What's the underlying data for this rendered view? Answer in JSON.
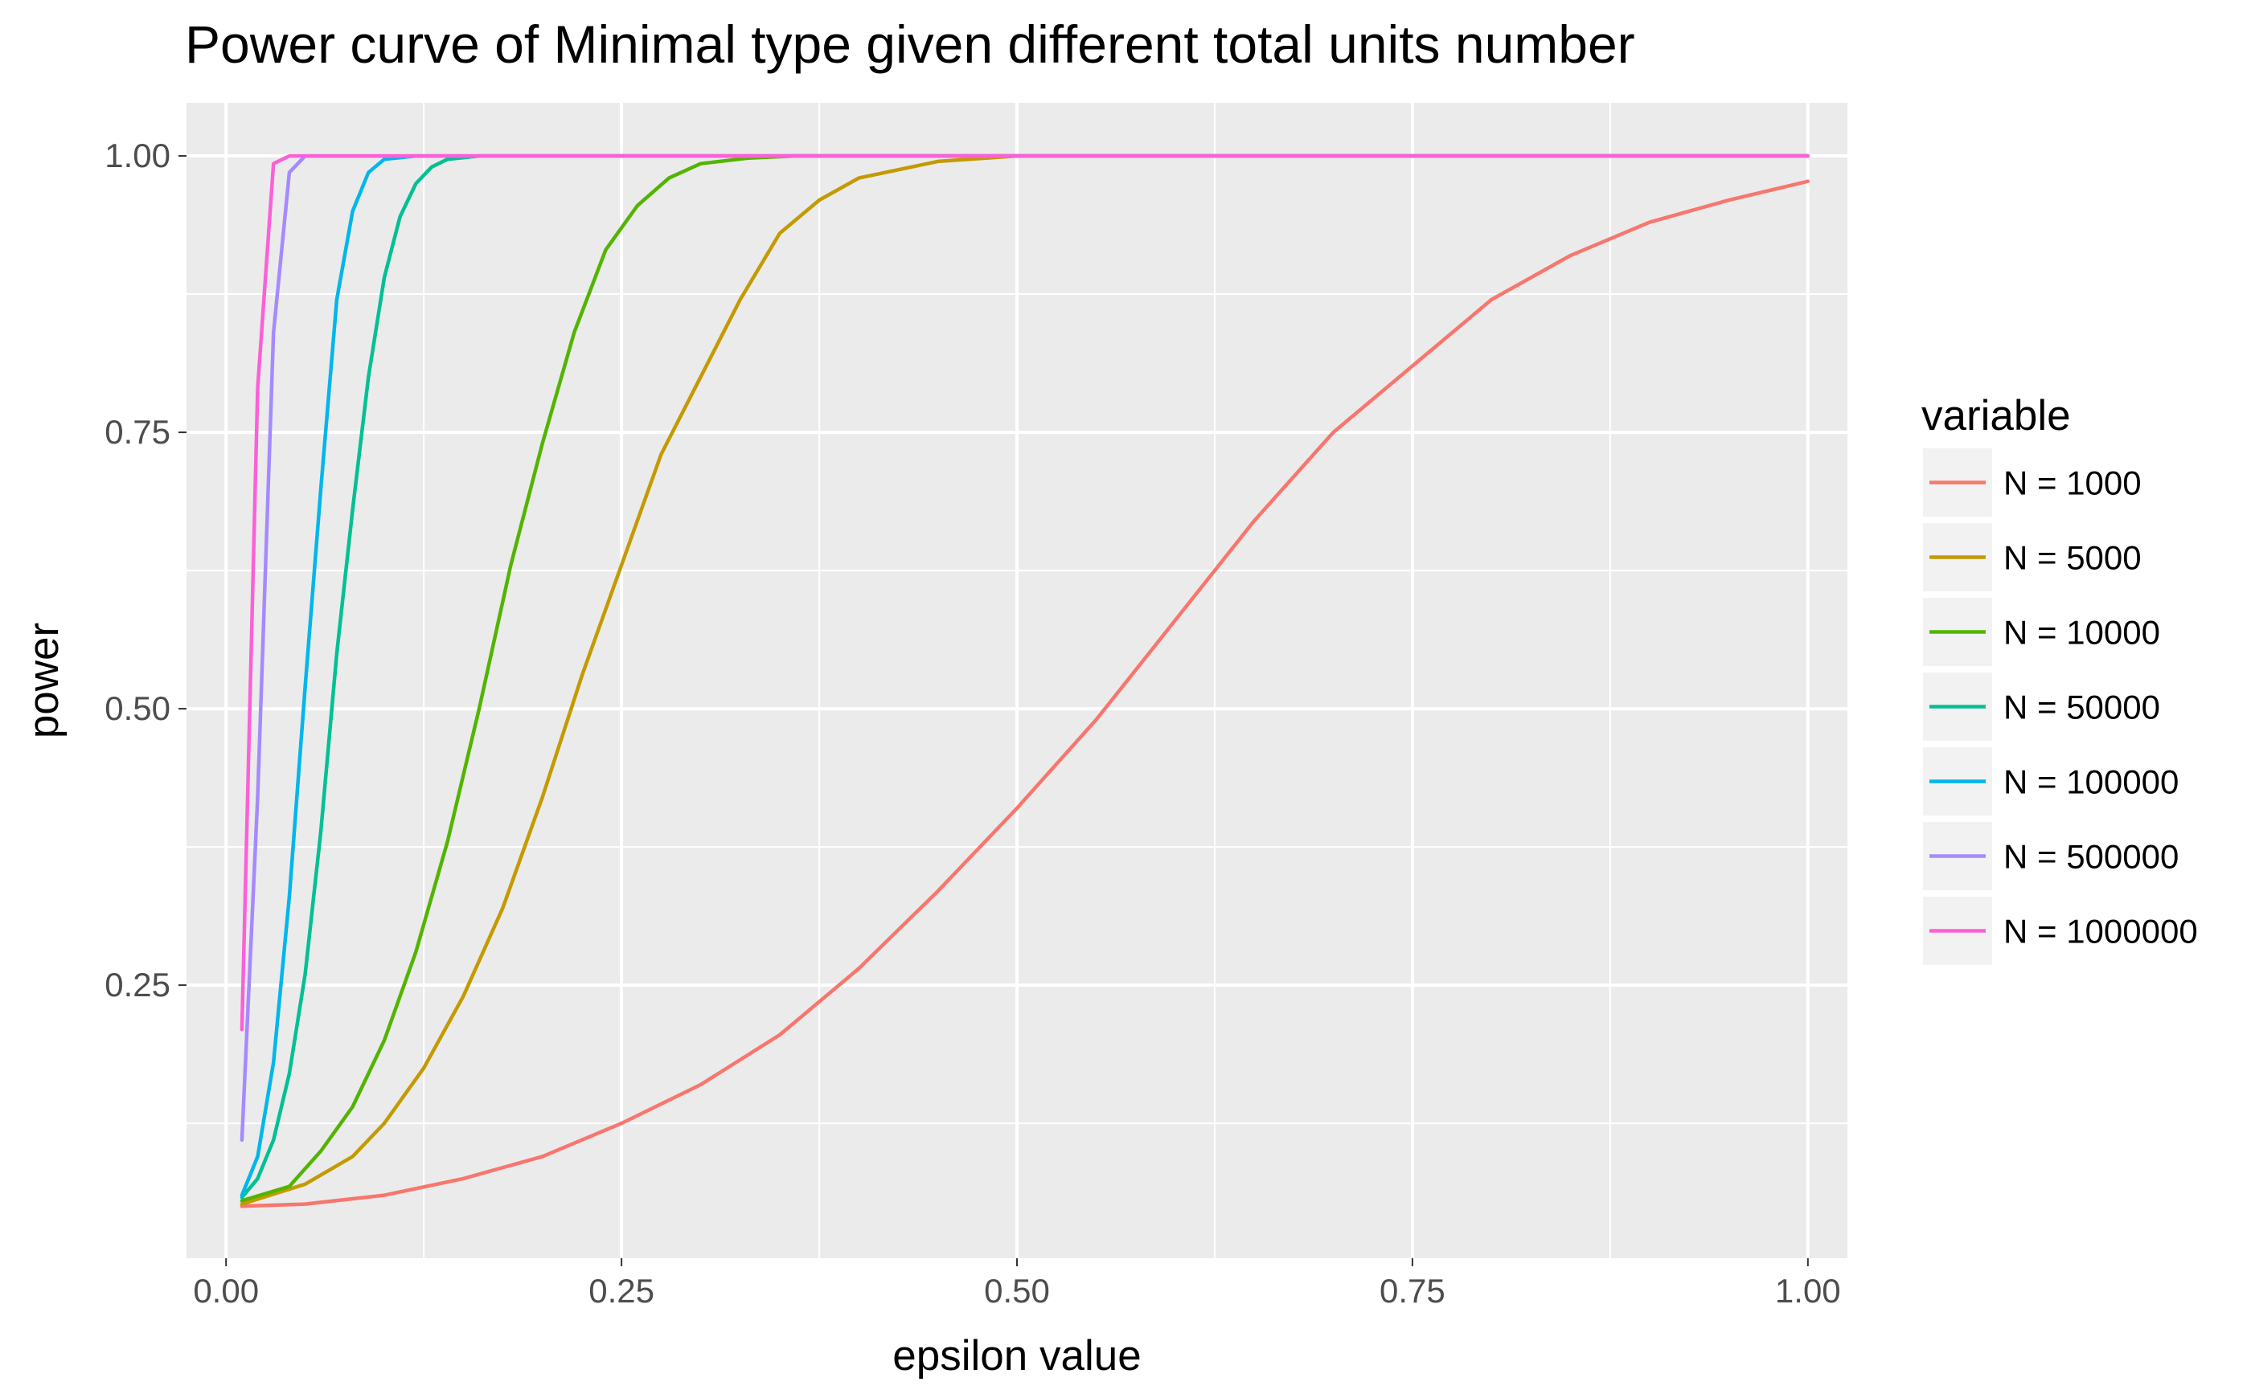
{
  "chart_data": {
    "type": "line",
    "title": "Power curve of Minimal type given different total units number",
    "xlabel": "epsilon value",
    "ylabel": "power",
    "xlim": [
      -0.025,
      1.025
    ],
    "ylim": [
      0.003,
      1.048
    ],
    "x_ticks": [
      0.0,
      0.25,
      0.5,
      0.75,
      1.0
    ],
    "x_tick_labels": [
      "0.00",
      "0.25",
      "0.50",
      "0.75",
      "1.00"
    ],
    "y_ticks": [
      0.25,
      0.5,
      0.75,
      1.0
    ],
    "y_tick_labels": [
      "0.25",
      "0.50",
      "0.75",
      "1.00"
    ],
    "grid": true,
    "legend_title": "variable",
    "legend_position": "right",
    "series": [
      {
        "name": "N = 1000",
        "color": "#F8766D",
        "points": [
          [
            0.01,
            0.05
          ],
          [
            0.05,
            0.052
          ],
          [
            0.1,
            0.06
          ],
          [
            0.15,
            0.075
          ],
          [
            0.2,
            0.095
          ],
          [
            0.25,
            0.125
          ],
          [
            0.3,
            0.16
          ],
          [
            0.35,
            0.205
          ],
          [
            0.4,
            0.265
          ],
          [
            0.45,
            0.335
          ],
          [
            0.5,
            0.41
          ],
          [
            0.55,
            0.49
          ],
          [
            0.6,
            0.58
          ],
          [
            0.65,
            0.67
          ],
          [
            0.7,
            0.75
          ],
          [
            0.75,
            0.81
          ],
          [
            0.8,
            0.87
          ],
          [
            0.85,
            0.91
          ],
          [
            0.9,
            0.94
          ],
          [
            0.95,
            0.96
          ],
          [
            1.0,
            0.977
          ]
        ]
      },
      {
        "name": "N = 5000",
        "color": "#C49A00",
        "points": [
          [
            0.01,
            0.052
          ],
          [
            0.05,
            0.07
          ],
          [
            0.08,
            0.095
          ],
          [
            0.1,
            0.125
          ],
          [
            0.125,
            0.175
          ],
          [
            0.15,
            0.24
          ],
          [
            0.175,
            0.32
          ],
          [
            0.2,
            0.42
          ],
          [
            0.225,
            0.53
          ],
          [
            0.25,
            0.63
          ],
          [
            0.275,
            0.73
          ],
          [
            0.3,
            0.8
          ],
          [
            0.325,
            0.87
          ],
          [
            0.35,
            0.93
          ],
          [
            0.375,
            0.96
          ],
          [
            0.4,
            0.98
          ],
          [
            0.45,
            0.995
          ],
          [
            0.5,
            1.0
          ],
          [
            1.0,
            1.0
          ]
        ]
      },
      {
        "name": "N = 10000",
        "color": "#53B400",
        "points": [
          [
            0.01,
            0.055
          ],
          [
            0.04,
            0.068
          ],
          [
            0.06,
            0.1
          ],
          [
            0.08,
            0.14
          ],
          [
            0.1,
            0.2
          ],
          [
            0.12,
            0.28
          ],
          [
            0.14,
            0.38
          ],
          [
            0.16,
            0.5
          ],
          [
            0.18,
            0.63
          ],
          [
            0.2,
            0.74
          ],
          [
            0.22,
            0.84
          ],
          [
            0.24,
            0.915
          ],
          [
            0.26,
            0.955
          ],
          [
            0.28,
            0.98
          ],
          [
            0.3,
            0.993
          ],
          [
            0.33,
            0.998
          ],
          [
            0.36,
            1.0
          ],
          [
            1.0,
            1.0
          ]
        ]
      },
      {
        "name": "N = 50000",
        "color": "#00C094",
        "points": [
          [
            0.01,
            0.058
          ],
          [
            0.02,
            0.075
          ],
          [
            0.03,
            0.11
          ],
          [
            0.04,
            0.17
          ],
          [
            0.05,
            0.26
          ],
          [
            0.06,
            0.39
          ],
          [
            0.07,
            0.55
          ],
          [
            0.08,
            0.68
          ],
          [
            0.09,
            0.8
          ],
          [
            0.1,
            0.89
          ],
          [
            0.11,
            0.945
          ],
          [
            0.12,
            0.975
          ],
          [
            0.13,
            0.99
          ],
          [
            0.14,
            0.997
          ],
          [
            0.16,
            1.0
          ],
          [
            1.0,
            1.0
          ]
        ]
      },
      {
        "name": "N = 100000",
        "color": "#00B6EB",
        "points": [
          [
            0.01,
            0.06
          ],
          [
            0.02,
            0.095
          ],
          [
            0.03,
            0.18
          ],
          [
            0.04,
            0.33
          ],
          [
            0.05,
            0.52
          ],
          [
            0.06,
            0.7
          ],
          [
            0.07,
            0.87
          ],
          [
            0.08,
            0.95
          ],
          [
            0.09,
            0.985
          ],
          [
            0.1,
            0.997
          ],
          [
            0.12,
            1.0
          ],
          [
            1.0,
            1.0
          ]
        ]
      },
      {
        "name": "N = 500000",
        "color": "#A58AFF",
        "points": [
          [
            0.01,
            0.11
          ],
          [
            0.02,
            0.42
          ],
          [
            0.03,
            0.84
          ],
          [
            0.04,
            0.985
          ],
          [
            0.05,
            1.0
          ],
          [
            1.0,
            1.0
          ]
        ]
      },
      {
        "name": "N = 1000000",
        "color": "#FB61D7",
        "points": [
          [
            0.01,
            0.21
          ],
          [
            0.02,
            0.79
          ],
          [
            0.03,
            0.993
          ],
          [
            0.04,
            1.0
          ],
          [
            1.0,
            1.0
          ]
        ]
      }
    ]
  }
}
